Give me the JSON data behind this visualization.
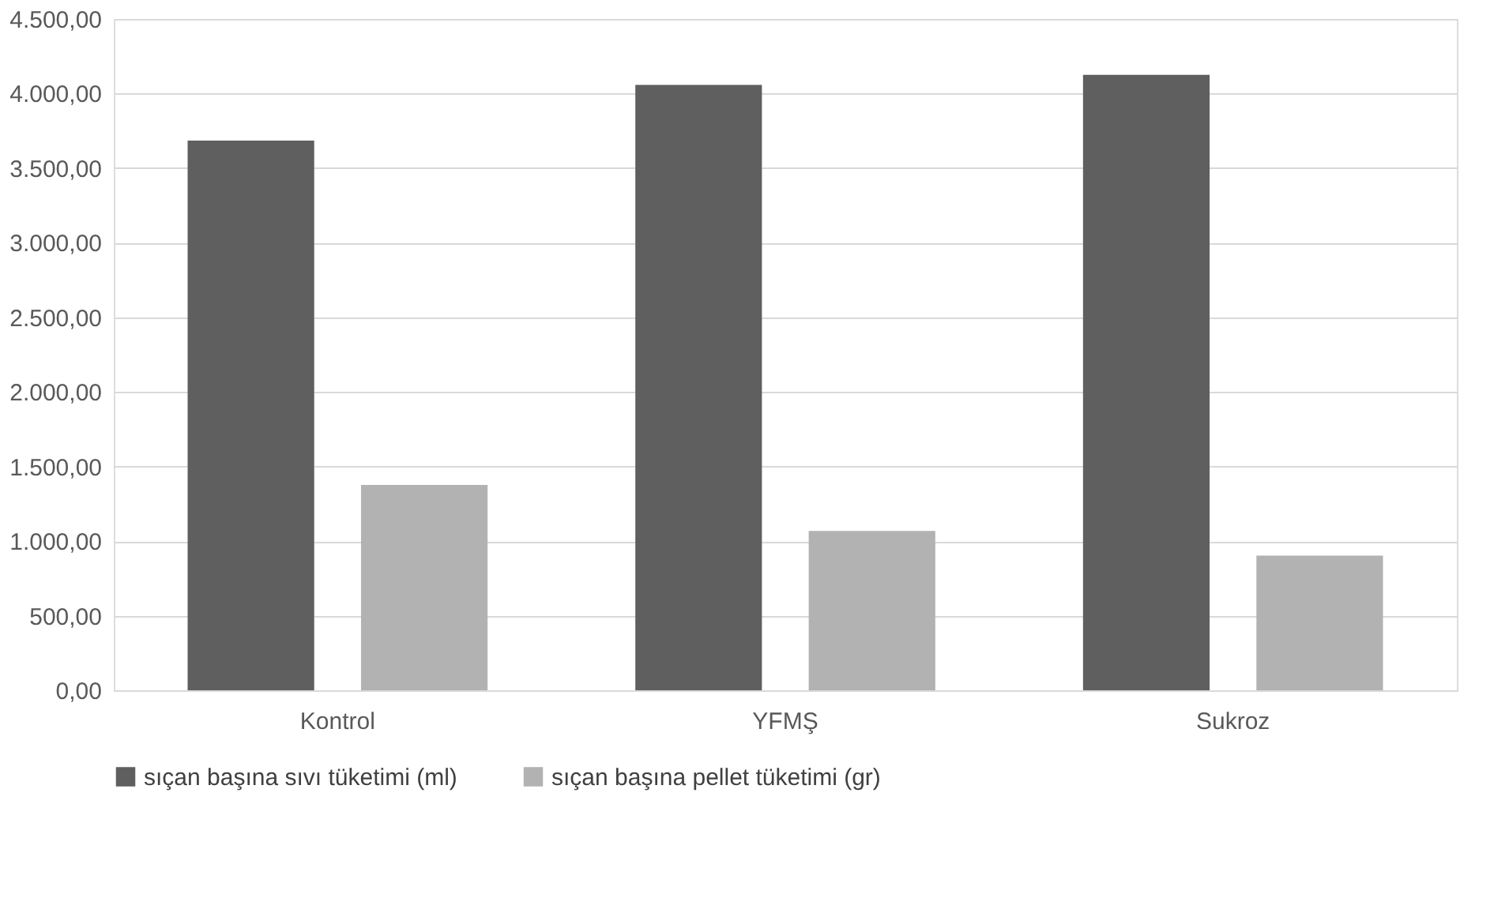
{
  "chart_data": {
    "type": "bar",
    "categories": [
      "Kontrol",
      "YFMŞ",
      "Sukroz"
    ],
    "series": [
      {
        "name": "sıçan başına sıvı tüketimi (ml)",
        "color": "#5f5f5f",
        "values": [
          3685,
          4058,
          4126
        ]
      },
      {
        "name": "sıçan başına pellet tüketimi (gr)",
        "color": "#b2b2b2",
        "values": [
          1377,
          1068,
          902
        ]
      }
    ],
    "ylim": [
      0,
      4500
    ],
    "yticks": [
      {
        "value": 0,
        "label": "0,00"
      },
      {
        "value": 500,
        "label": "500,00"
      },
      {
        "value": 1000,
        "label": "1.000,00"
      },
      {
        "value": 1500,
        "label": "1.500,00"
      },
      {
        "value": 2000,
        "label": "2.000,00"
      },
      {
        "value": 2500,
        "label": "2.500,00"
      },
      {
        "value": 3000,
        "label": "3.000,00"
      },
      {
        "value": 3500,
        "label": "3.500,00"
      },
      {
        "value": 4000,
        "label": "4.000,00"
      },
      {
        "value": 4500,
        "label": "4.500,00"
      }
    ],
    "grid": "y",
    "legend": "bottom"
  }
}
